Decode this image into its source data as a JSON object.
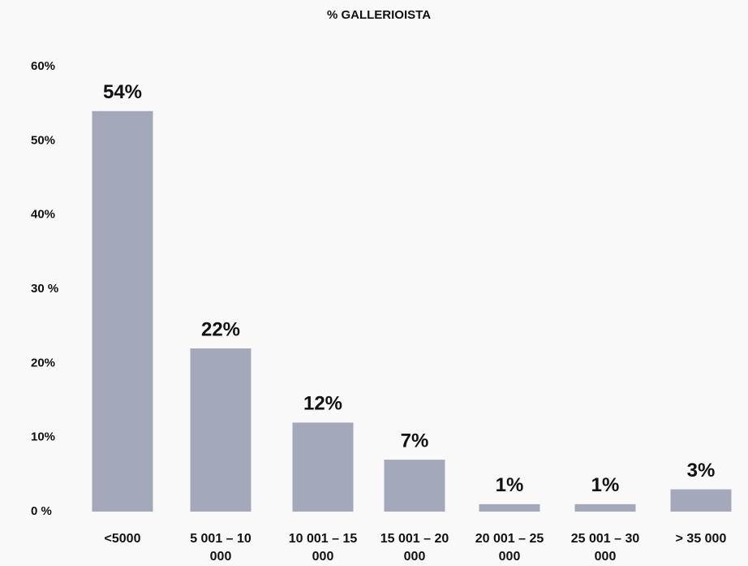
{
  "chart_data": {
    "type": "bar",
    "title": "% GALLERIOISTA",
    "categories": [
      "<5000",
      "5 001 – 10 000",
      "10 001 – 15 000",
      "15 001 – 20 000",
      "20 001 – 25 000",
      "25 001 – 30 000",
      "> 35 000"
    ],
    "values": [
      54,
      22,
      12,
      7,
      1,
      1,
      3
    ],
    "value_labels": [
      "54%",
      "22%",
      "12%",
      "7%",
      "1%",
      "1%",
      "3%"
    ],
    "color": "#a3a9bb",
    "ylim": [
      0,
      60
    ],
    "yticks": [
      {
        "value": 0,
        "label": "0 %"
      },
      {
        "value": 10,
        "label": "10%"
      },
      {
        "value": 20,
        "label": "20%"
      },
      {
        "value": 30,
        "label": "30 %"
      },
      {
        "value": 40,
        "label": "40%"
      },
      {
        "value": 50,
        "label": "50%"
      },
      {
        "value": 60,
        "label": "60%"
      }
    ],
    "grid": false
  }
}
